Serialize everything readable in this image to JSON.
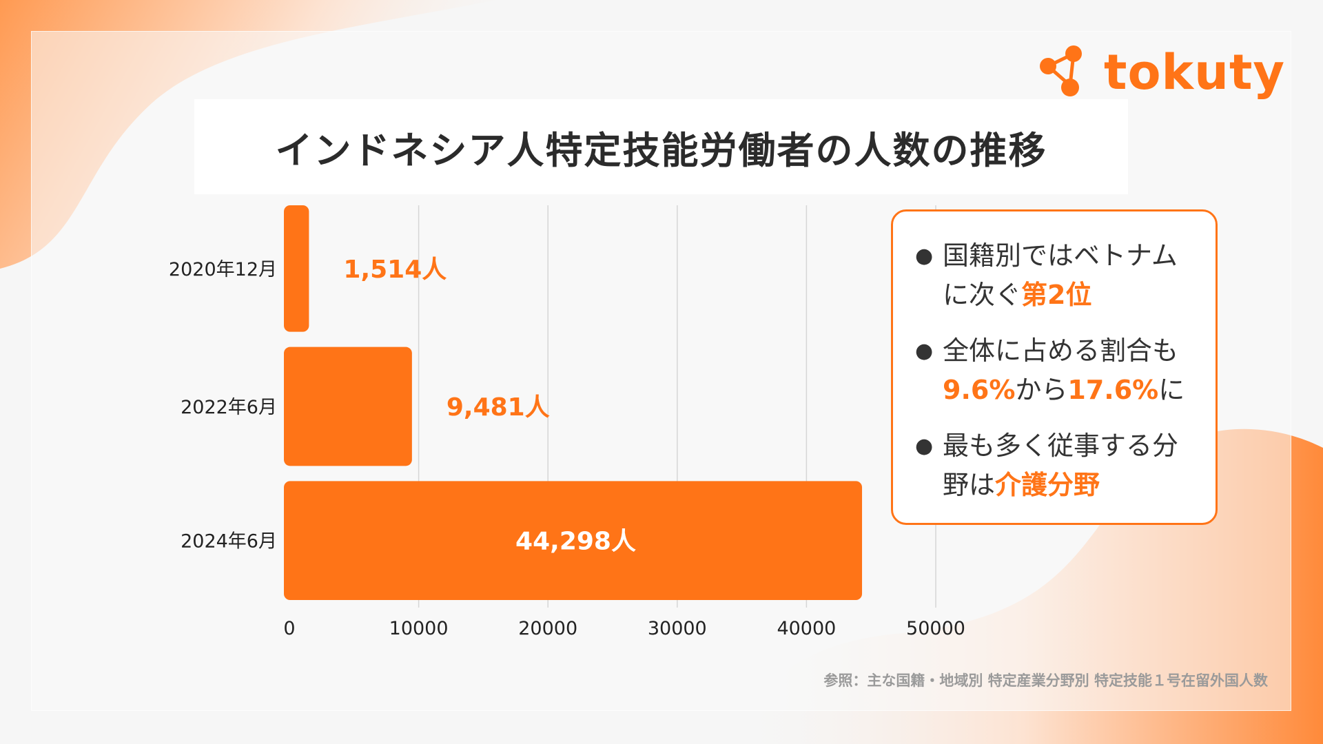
{
  "title": "インドネシア人特定技能労働者の人数の推移",
  "logo": {
    "text": "tokuty"
  },
  "colors": {
    "accent": "#ff7417",
    "text": "#2b2b2b",
    "source": "#9a9a9a"
  },
  "chart_data": {
    "type": "bar",
    "orientation": "horizontal",
    "categories": [
      "2020年12月",
      "2022年6月",
      "2024年6月"
    ],
    "values": [
      1514,
      9481,
      44298
    ],
    "data_labels": [
      "1,514人",
      "9,481人",
      "44,298人"
    ],
    "xlim": [
      0,
      50000
    ],
    "xticks": [
      "0",
      "10000",
      "20000",
      "30000",
      "40000",
      "50000"
    ],
    "grid": true,
    "title": "",
    "xlabel": "",
    "ylabel": ""
  },
  "info": {
    "items": [
      {
        "pre": "国籍別ではベトナムに次ぐ",
        "hl1": "第2位",
        "mid": "",
        "hl2": "",
        "post": ""
      },
      {
        "pre": "全体に占める割合も",
        "hl1": "9.6%",
        "mid": "から",
        "hl2": "17.6%",
        "post": "に"
      },
      {
        "pre": "最も多く従事する分野は",
        "hl1": "介護分野",
        "mid": "",
        "hl2": "",
        "post": ""
      }
    ]
  },
  "source": "参照：主な国籍・地域別 特定産業分野別 特定技能１号在留外国人数"
}
